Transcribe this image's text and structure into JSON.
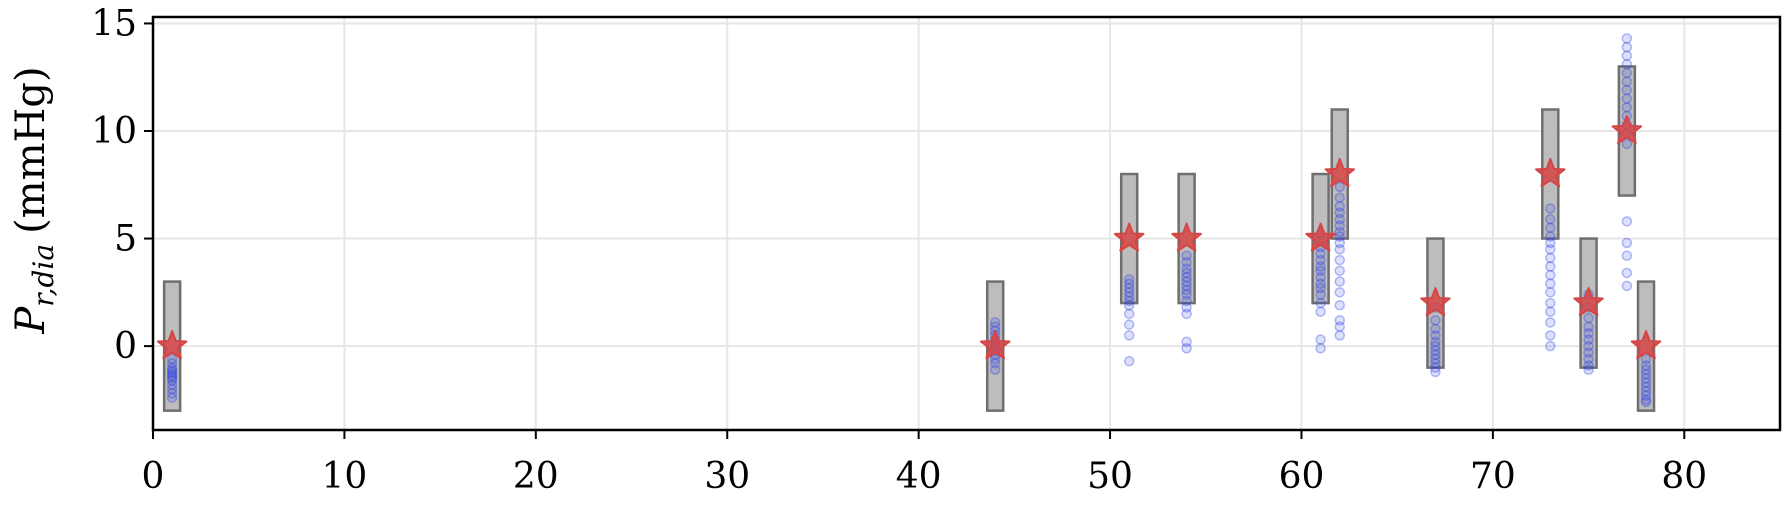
{
  "chart_data": {
    "type": "scatter",
    "title": "",
    "xlabel": "",
    "ylabel": {
      "symbol": "P",
      "subscript": "r,dia",
      "unit": "(mmHg)"
    },
    "xlim": [
      0,
      85
    ],
    "ylim": [
      -3.9,
      15.3
    ],
    "xticks": [
      0,
      10,
      20,
      30,
      40,
      50,
      60,
      70,
      80
    ],
    "yticks": [
      0,
      5,
      10,
      15
    ],
    "grid": true,
    "colors": {
      "range_fill": "#bdbdbd",
      "range_edge": "#6f6f6f",
      "samples": "#2b3fe6",
      "target_marker": "#d64545",
      "grid": "#e6e6e6"
    },
    "series": [
      {
        "kind": "range",
        "points": [
          {
            "x": 1,
            "low": -3,
            "high": 3
          },
          {
            "x": 44,
            "low": -3,
            "high": 3
          },
          {
            "x": 51,
            "low": 2,
            "high": 8
          },
          {
            "x": 54,
            "low": 2,
            "high": 8
          },
          {
            "x": 61,
            "low": 2,
            "high": 8
          },
          {
            "x": 62,
            "low": 5,
            "high": 11
          },
          {
            "x": 67,
            "low": -1,
            "high": 5
          },
          {
            "x": 73,
            "low": 5,
            "high": 11
          },
          {
            "x": 75,
            "low": -1,
            "high": 5
          },
          {
            "x": 77,
            "low": 7,
            "high": 13
          },
          {
            "x": 78,
            "low": -3,
            "high": 3
          }
        ]
      },
      {
        "kind": "samples",
        "points": [
          {
            "x": 1,
            "y": [
              -0.6,
              -0.8,
              -1.0,
              -1.1,
              -1.2,
              -1.3,
              -1.4,
              -1.5,
              -1.6,
              -1.8,
              -2.0,
              -2.2,
              -2.4
            ]
          },
          {
            "x": 44,
            "y": [
              1.1,
              0.9,
              0.7,
              0.5,
              0.3,
              0.1,
              0.0,
              -0.2,
              -0.4,
              -0.6,
              -0.8,
              -1.1
            ]
          },
          {
            "x": 51,
            "y": [
              3.1,
              2.9,
              2.7,
              2.5,
              2.3,
              2.1,
              1.9,
              1.5,
              1.0,
              0.5,
              -0.7
            ]
          },
          {
            "x": 54,
            "y": [
              4.2,
              3.9,
              3.6,
              3.4,
              3.2,
              3.0,
              2.8,
              2.6,
              2.4,
              2.1,
              1.8,
              1.5,
              0.2,
              -0.1
            ]
          },
          {
            "x": 61,
            "y": [
              5.2,
              4.9,
              4.6,
              4.3,
              4.0,
              3.7,
              3.5,
              3.2,
              2.9,
              2.7,
              2.4,
              2.0,
              1.6,
              0.3,
              -0.1
            ]
          },
          {
            "x": 62,
            "y": [
              7.4,
              6.9,
              6.5,
              6.2,
              5.9,
              5.6,
              5.3,
              5.1,
              4.8,
              4.5,
              4.0,
              3.5,
              3.0,
              2.5,
              1.9,
              1.2,
              0.9,
              0.5
            ]
          },
          {
            "x": 67,
            "y": [
              1.8,
              1.2,
              0.8,
              0.5,
              0.2,
              0.0,
              -0.2,
              -0.4,
              -0.6,
              -0.8,
              -1.0,
              -1.2
            ]
          },
          {
            "x": 73,
            "y": [
              6.4,
              5.9,
              5.5,
              5.1,
              4.8,
              4.5,
              4.1,
              3.7,
              3.3,
              2.9,
              2.5,
              2.0,
              1.6,
              1.1,
              0.5,
              0.0
            ]
          },
          {
            "x": 75,
            "y": [
              2.4,
              1.8,
              1.3,
              0.9,
              0.6,
              0.3,
              0.0,
              -0.3,
              -0.6,
              -0.9,
              -1.1
            ]
          },
          {
            "x": 77,
            "y": [
              14.3,
              13.9,
              13.5,
              13.1,
              12.7,
              12.3,
              11.9,
              11.5,
              11.1,
              10.7,
              10.3,
              9.9,
              9.4,
              5.8,
              4.8,
              4.2,
              3.4,
              2.8
            ]
          },
          {
            "x": 78,
            "y": [
              -0.6,
              -0.9,
              -1.1,
              -1.3,
              -1.5,
              -1.7,
              -1.9,
              -2.1,
              -2.3,
              -2.5,
              -2.6
            ]
          }
        ]
      },
      {
        "kind": "target",
        "points": [
          {
            "x": 1,
            "y": 0
          },
          {
            "x": 44,
            "y": 0
          },
          {
            "x": 51,
            "y": 5
          },
          {
            "x": 54,
            "y": 5
          },
          {
            "x": 61,
            "y": 5
          },
          {
            "x": 62,
            "y": 8
          },
          {
            "x": 67,
            "y": 2
          },
          {
            "x": 73,
            "y": 8
          },
          {
            "x": 75,
            "y": 2
          },
          {
            "x": 77,
            "y": 10
          },
          {
            "x": 78,
            "y": 0
          }
        ]
      }
    ]
  }
}
